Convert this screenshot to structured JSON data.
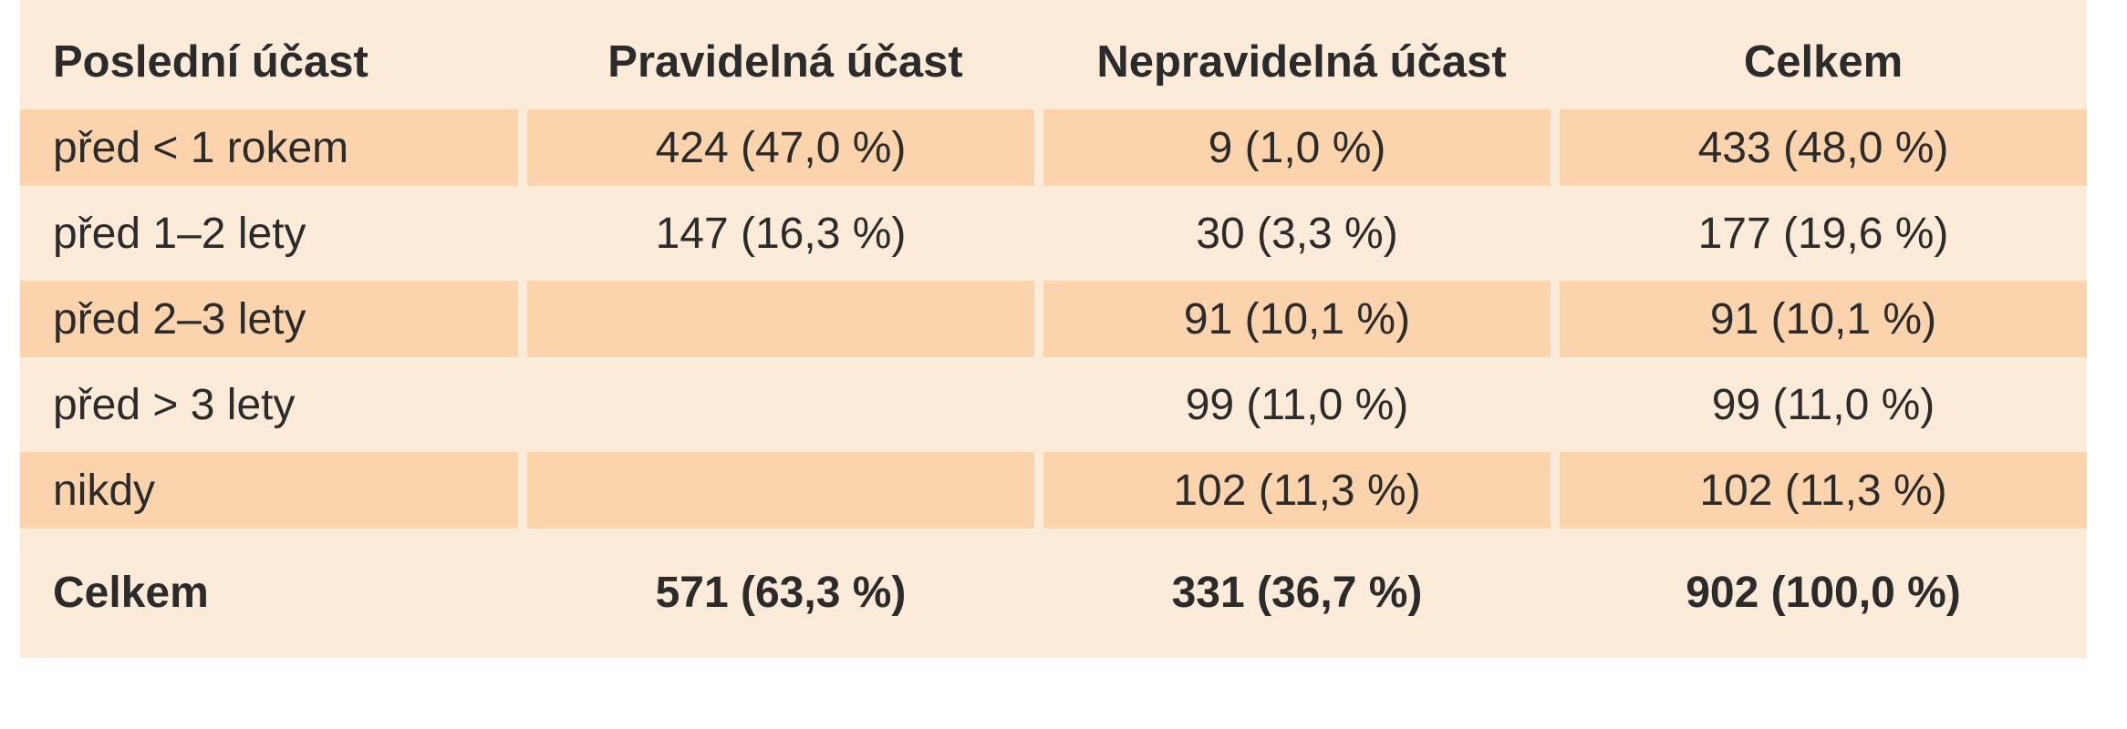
{
  "table": {
    "headers": [
      "Poslední účast",
      "Pravidelná účast",
      "Nepravidelná účast",
      "Celkem"
    ],
    "rows": [
      [
        "před < 1 rokem",
        "424 (47,0 %)",
        "9 (1,0 %)",
        "433 (48,0 %)"
      ],
      [
        "před 1–2 lety",
        "147 (16,3 %)",
        "30 (3,3 %)",
        "177 (19,6 %)"
      ],
      [
        "před 2–3 lety",
        "",
        "91 (10,1 %)",
        "91 (10,1 %)"
      ],
      [
        "před > 3 lety",
        "",
        "99 (11,0 %)",
        "99 (11,0 %)"
      ],
      [
        "nikdy",
        "",
        "102 (11,3 %)",
        "102 (11,3 %)"
      ]
    ],
    "total": [
      "Celkem",
      "571 (63,3 %)",
      "331 (36,7 %)",
      "902 (100,0 %)"
    ]
  },
  "colors": {
    "panel_background": "#fdebd9",
    "stripe_background": "#fbd3ad",
    "text": "#2b2b2b"
  }
}
